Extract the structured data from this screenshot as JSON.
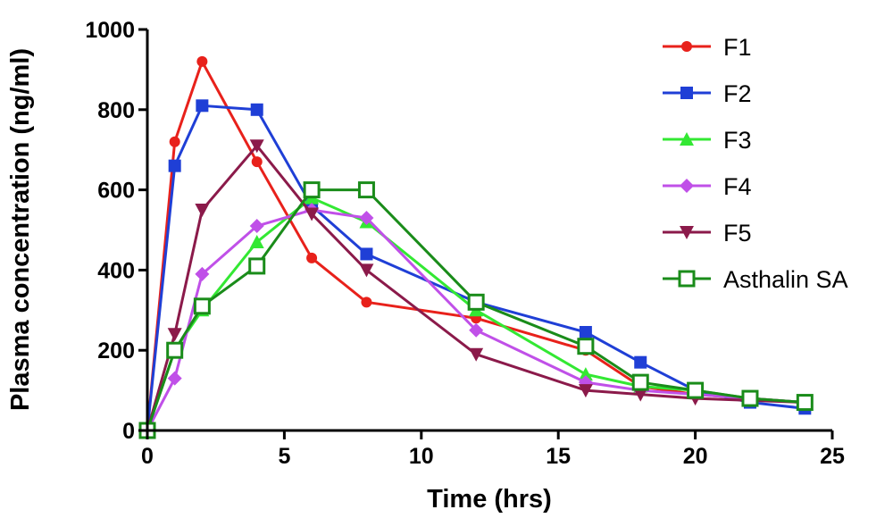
{
  "chart_data": {
    "type": "line",
    "title": "",
    "xlabel": "Time (hrs)",
    "ylabel": "Plasma concentration (ng/ml)",
    "xlim": [
      0,
      25
    ],
    "ylim": [
      0,
      1000
    ],
    "xticks": [
      0,
      5,
      10,
      15,
      20,
      25
    ],
    "yticks": [
      0,
      200,
      400,
      600,
      800,
      1000
    ],
    "grid": false,
    "legend_position": "top-right",
    "series": [
      {
        "name": "F1",
        "color": "#e8211b",
        "marker": "circle",
        "x": [
          0,
          1,
          2,
          4,
          6,
          8,
          12,
          16,
          18,
          20,
          22,
          24
        ],
        "y": [
          0,
          720,
          920,
          670,
          430,
          320,
          280,
          200,
          110,
          90,
          80,
          70
        ]
      },
      {
        "name": "F2",
        "color": "#1f3fd6",
        "marker": "square",
        "x": [
          0,
          1,
          2,
          4,
          6,
          8,
          12,
          16,
          18,
          20,
          22,
          24
        ],
        "y": [
          0,
          660,
          810,
          800,
          560,
          440,
          320,
          245,
          170,
          100,
          70,
          55
        ]
      },
      {
        "name": "F3",
        "color": "#33e833",
        "marker": "triangle-up",
        "x": [
          0,
          1,
          2,
          4,
          6,
          8,
          12,
          16,
          18,
          20,
          22,
          24
        ],
        "y": [
          0,
          200,
          300,
          470,
          580,
          520,
          300,
          140,
          110,
          100,
          80,
          70
        ]
      },
      {
        "name": "F4",
        "color": "#c050e8",
        "marker": "diamond",
        "x": [
          0,
          1,
          2,
          4,
          6,
          8,
          12,
          16,
          18,
          20,
          22,
          24
        ],
        "y": [
          0,
          130,
          390,
          510,
          550,
          530,
          250,
          120,
          100,
          90,
          80,
          70
        ]
      },
      {
        "name": "F5",
        "color": "#8b1a4a",
        "marker": "triangle-down",
        "x": [
          0,
          1,
          2,
          4,
          6,
          8,
          12,
          16,
          18,
          20,
          22,
          24
        ],
        "y": [
          0,
          240,
          550,
          710,
          540,
          400,
          190,
          100,
          90,
          80,
          75,
          70
        ]
      },
      {
        "name": "Asthalin SA",
        "color": "#1a8c1a",
        "marker": "square-open",
        "x": [
          0,
          1,
          2,
          4,
          6,
          8,
          12,
          16,
          18,
          20,
          22,
          24
        ],
        "y": [
          0,
          200,
          310,
          410,
          600,
          600,
          320,
          210,
          120,
          100,
          80,
          70
        ]
      }
    ]
  }
}
